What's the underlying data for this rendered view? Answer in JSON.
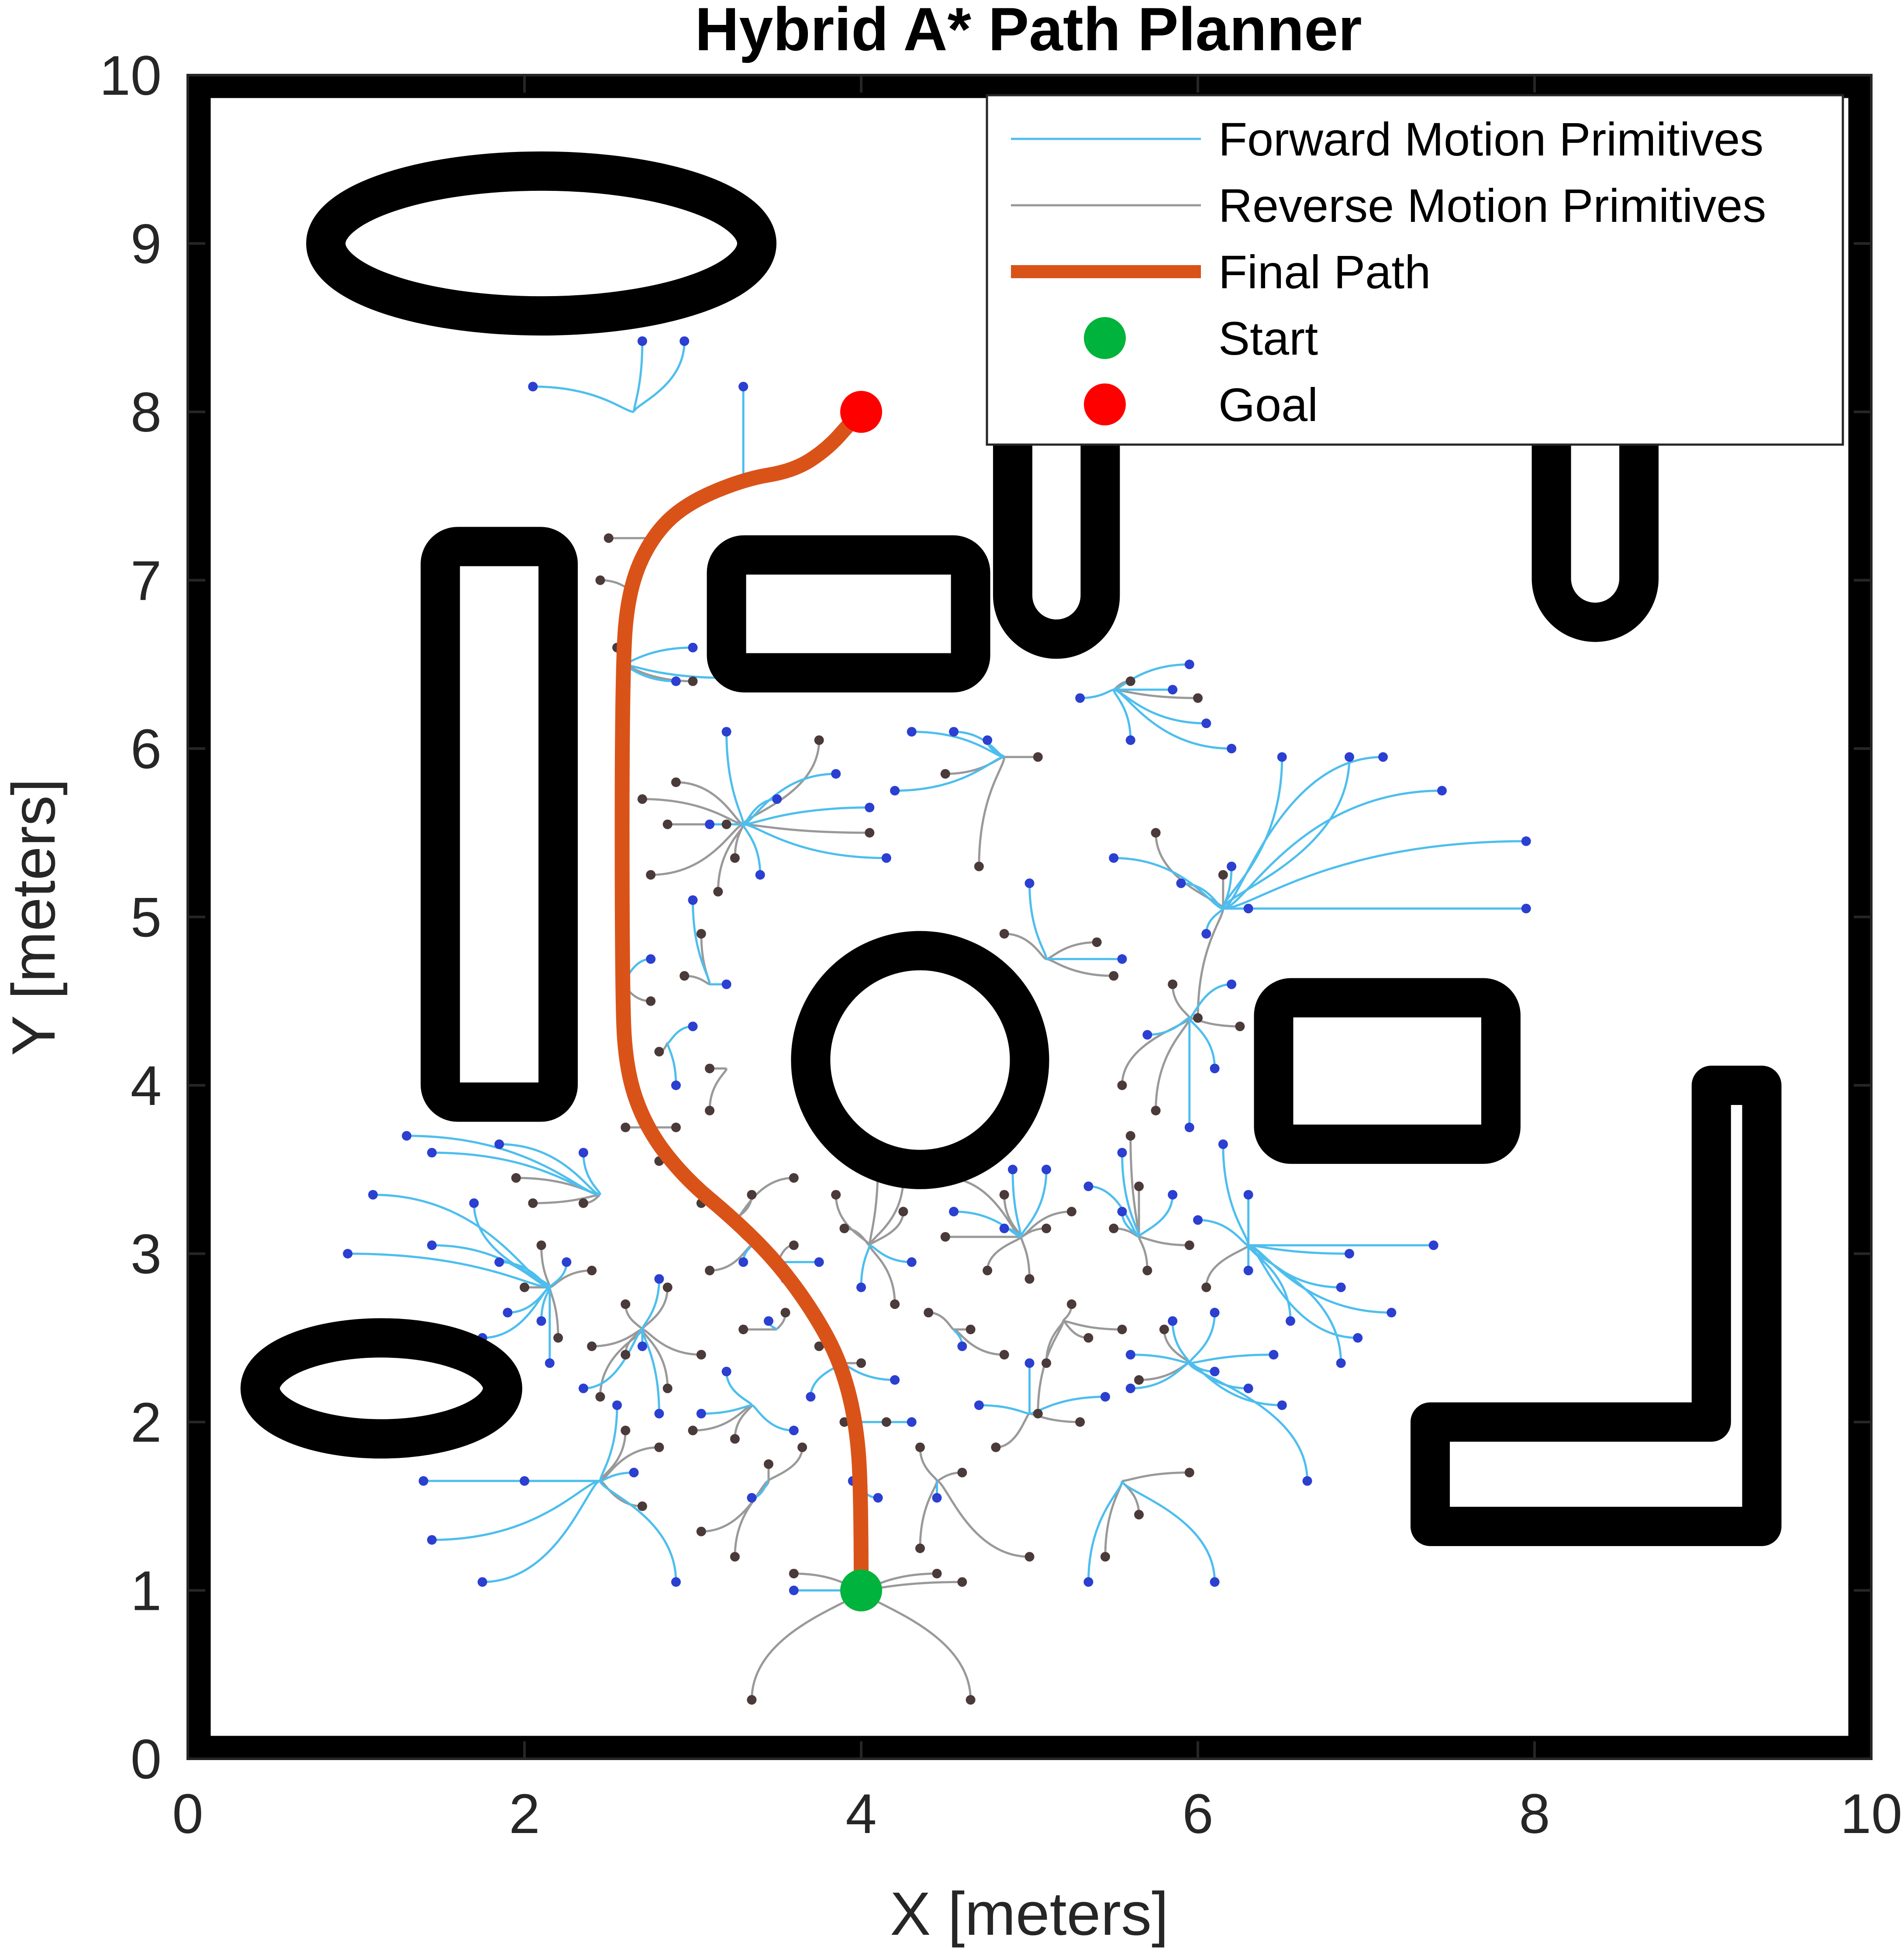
{
  "chart_data": {
    "type": "scatter",
    "title": "Hybrid A* Path Planner",
    "xlabel": "X [meters]",
    "ylabel": "Y [meters]",
    "xlim": [
      0,
      10
    ],
    "ylim": [
      0,
      10
    ],
    "xticks": [
      "0",
      "2",
      "4",
      "6",
      "8",
      "10"
    ],
    "yticks": [
      "0",
      "1",
      "2",
      "3",
      "4",
      "5",
      "6",
      "7",
      "8",
      "9",
      "10"
    ],
    "grid": false,
    "legend_position": "top-right",
    "legend": [
      {
        "label": "Forward Motion Primitives",
        "kind": "line",
        "color": "#4DBEEE"
      },
      {
        "label": "Reverse Motion Primitives",
        "kind": "line",
        "color": "#999999"
      },
      {
        "label": "Final Path",
        "kind": "thick-line",
        "color": "#D95319"
      },
      {
        "label": "Start",
        "kind": "marker",
        "color": "#00B33C"
      },
      {
        "label": "Goal",
        "kind": "marker",
        "color": "#FF0000"
      }
    ],
    "start": {
      "x": 4.0,
      "y": 1.0
    },
    "goal": {
      "x": 4.0,
      "y": 8.0
    },
    "final_path": [
      [
        4.0,
        1.0
      ],
      [
        4.0,
        1.6
      ],
      [
        3.97,
        2.0
      ],
      [
        3.88,
        2.35
      ],
      [
        3.72,
        2.65
      ],
      [
        3.5,
        2.95
      ],
      [
        3.25,
        3.2
      ],
      [
        2.95,
        3.45
      ],
      [
        2.72,
        3.75
      ],
      [
        2.6,
        4.1
      ],
      [
        2.58,
        4.6
      ],
      [
        2.58,
        6.5
      ],
      [
        2.62,
        6.95
      ],
      [
        2.75,
        7.25
      ],
      [
        2.95,
        7.45
      ],
      [
        3.3,
        7.6
      ],
      [
        3.6,
        7.65
      ],
      [
        3.8,
        7.78
      ],
      [
        3.95,
        7.95
      ],
      [
        4.0,
        8.0
      ]
    ],
    "obstacles": [
      {
        "shape": "ellipse",
        "cx": 2.1,
        "cy": 9.0,
        "rx": 1.28,
        "ry": 0.43
      },
      {
        "shape": "rect",
        "x0": 1.5,
        "x1": 2.2,
        "y0": 3.9,
        "y1": 7.2
      },
      {
        "shape": "rect",
        "x0": 3.2,
        "x1": 4.65,
        "y0": 6.45,
        "y1": 7.15
      },
      {
        "shape": "u-slot",
        "x0": 4.9,
        "x1": 5.42,
        "ybottom": 6.65,
        "ytop": 8.0
      },
      {
        "shape": "u-slot",
        "x0": 8.1,
        "x1": 8.62,
        "ybottom": 6.75,
        "ytop": 8.0
      },
      {
        "shape": "circle",
        "cx": 4.35,
        "cy": 4.15,
        "r": 0.65
      },
      {
        "shape": "rect",
        "x0": 6.45,
        "x1": 7.8,
        "y0": 3.65,
        "y1": 4.52
      },
      {
        "shape": "ellipse",
        "cx": 1.15,
        "cy": 2.2,
        "rx": 0.72,
        "ry": 0.3
      },
      {
        "shape": "l-shape",
        "pts": [
          [
            9.05,
            4.0
          ],
          [
            9.35,
            4.0
          ],
          [
            9.35,
            1.38
          ],
          [
            7.38,
            1.38
          ],
          [
            7.38,
            2.0
          ],
          [
            9.05,
            2.0
          ]
        ]
      }
    ],
    "forward_endpoints": [
      [
        2.7,
        8.42
      ],
      [
        2.05,
        8.15
      ],
      [
        2.95,
        8.42
      ],
      [
        3.3,
        8.15
      ],
      [
        3.2,
        6.42
      ],
      [
        3.0,
        6.6
      ],
      [
        3.2,
        6.1
      ],
      [
        2.9,
        6.4
      ],
      [
        4.3,
        6.1
      ],
      [
        4.55,
        6.1
      ],
      [
        4.75,
        6.05
      ],
      [
        3.85,
        5.85
      ],
      [
        4.2,
        5.75
      ],
      [
        5.3,
        6.3
      ],
      [
        5.95,
        6.5
      ],
      [
        5.85,
        6.35
      ],
      [
        5.6,
        6.05
      ],
      [
        6.05,
        6.15
      ],
      [
        6.2,
        6.0
      ],
      [
        6.5,
        5.95
      ],
      [
        6.9,
        5.95
      ],
      [
        7.1,
        5.95
      ],
      [
        7.45,
        5.75
      ],
      [
        7.95,
        5.45
      ],
      [
        7.95,
        5.05
      ],
      [
        6.2,
        5.3
      ],
      [
        5.9,
        5.2
      ],
      [
        6.3,
        5.05
      ],
      [
        5.0,
        5.2
      ],
      [
        5.5,
        5.35
      ],
      [
        3.5,
        5.7
      ],
      [
        3.1,
        5.55
      ],
      [
        3.4,
        5.25
      ],
      [
        3.2,
        4.6
      ],
      [
        3.0,
        4.35
      ],
      [
        2.9,
        4.0
      ],
      [
        3.0,
        5.1
      ],
      [
        2.75,
        4.75
      ],
      [
        4.15,
        5.35
      ],
      [
        4.05,
        5.65
      ],
      [
        5.55,
        4.75
      ],
      [
        6.05,
        4.9
      ],
      [
        6.2,
        4.6
      ],
      [
        6.1,
        4.1
      ],
      [
        5.7,
        4.3
      ],
      [
        5.55,
        3.6
      ],
      [
        5.95,
        3.75
      ],
      [
        6.15,
        3.65
      ],
      [
        1.3,
        3.7
      ],
      [
        1.45,
        3.6
      ],
      [
        1.85,
        3.65
      ],
      [
        2.35,
        3.6
      ],
      [
        1.1,
        3.35
      ],
      [
        1.7,
        3.3
      ],
      [
        0.95,
        3.0
      ],
      [
        1.45,
        3.05
      ],
      [
        1.85,
        2.95
      ],
      [
        2.25,
        2.95
      ],
      [
        1.9,
        2.65
      ],
      [
        2.1,
        2.6
      ],
      [
        1.75,
        2.5
      ],
      [
        2.15,
        2.35
      ],
      [
        2.35,
        2.2
      ],
      [
        2.7,
        2.45
      ],
      [
        2.55,
        2.1
      ],
      [
        2.8,
        2.05
      ],
      [
        3.05,
        2.05
      ],
      [
        3.2,
        2.3
      ],
      [
        3.45,
        2.6
      ],
      [
        3.3,
        2.95
      ],
      [
        3.55,
        2.85
      ],
      [
        3.75,
        2.95
      ],
      [
        2.8,
        2.85
      ],
      [
        4.0,
        2.8
      ],
      [
        4.3,
        2.95
      ],
      [
        4.55,
        3.25
      ],
      [
        4.85,
        3.15
      ],
      [
        4.9,
        3.5
      ],
      [
        5.1,
        3.5
      ],
      [
        5.35,
        3.4
      ],
      [
        5.55,
        3.25
      ],
      [
        5.85,
        3.35
      ],
      [
        6.0,
        3.2
      ],
      [
        6.3,
        3.35
      ],
      [
        6.9,
        3.0
      ],
      [
        7.4,
        3.05
      ],
      [
        6.3,
        2.9
      ],
      [
        6.1,
        2.65
      ],
      [
        5.85,
        2.6
      ],
      [
        5.6,
        2.4
      ],
      [
        5.45,
        2.15
      ],
      [
        6.1,
        2.3
      ],
      [
        6.45,
        2.4
      ],
      [
        6.55,
        2.6
      ],
      [
        6.95,
        2.5
      ],
      [
        6.85,
        2.35
      ],
      [
        6.3,
        2.2
      ],
      [
        5.6,
        2.2
      ],
      [
        5.0,
        2.35
      ],
      [
        4.6,
        2.45
      ],
      [
        4.7,
        2.1
      ],
      [
        4.3,
        2.0
      ],
      [
        4.2,
        2.25
      ],
      [
        3.7,
        2.15
      ],
      [
        3.6,
        1.95
      ],
      [
        3.95,
        1.65
      ],
      [
        4.1,
        1.55
      ],
      [
        4.45,
        1.55
      ],
      [
        3.35,
        1.55
      ],
      [
        2.65,
        1.7
      ],
      [
        2.0,
        1.65
      ],
      [
        1.4,
        1.65
      ],
      [
        1.45,
        1.3
      ],
      [
        1.75,
        1.05
      ],
      [
        2.9,
        1.05
      ],
      [
        3.6,
        1.0
      ],
      [
        5.35,
        1.05
      ],
      [
        6.1,
        1.05
      ],
      [
        6.65,
        1.65
      ],
      [
        6.5,
        2.1
      ],
      [
        6.85,
        2.8
      ],
      [
        7.15,
        2.65
      ]
    ],
    "reverse_endpoints": [
      [
        2.45,
        7.0
      ],
      [
        2.5,
        7.25
      ],
      [
        3.0,
        6.4
      ],
      [
        3.75,
        6.05
      ],
      [
        4.5,
        5.85
      ],
      [
        5.05,
        5.95
      ],
      [
        5.6,
        6.4
      ],
      [
        6.0,
        6.3
      ],
      [
        4.7,
        5.3
      ],
      [
        5.5,
        4.65
      ],
      [
        5.85,
        4.6
      ],
      [
        6.25,
        4.35
      ],
      [
        3.2,
        5.55
      ],
      [
        3.25,
        5.35
      ],
      [
        3.15,
        5.15
      ],
      [
        3.05,
        4.9
      ],
      [
        2.95,
        4.65
      ],
      [
        2.75,
        5.25
      ],
      [
        2.85,
        5.55
      ],
      [
        2.9,
        5.8
      ],
      [
        2.7,
        5.7
      ],
      [
        2.8,
        4.2
      ],
      [
        2.75,
        4.5
      ],
      [
        3.1,
        4.1
      ],
      [
        3.1,
        3.85
      ],
      [
        2.9,
        3.75
      ],
      [
        2.6,
        3.75
      ],
      [
        2.8,
        3.55
      ],
      [
        3.05,
        3.3
      ],
      [
        3.35,
        3.35
      ],
      [
        3.6,
        3.45
      ],
      [
        3.85,
        3.35
      ],
      [
        4.1,
        3.55
      ],
      [
        4.25,
        3.25
      ],
      [
        4.5,
        3.1
      ],
      [
        4.75,
        2.9
      ],
      [
        5.0,
        2.85
      ],
      [
        5.25,
        2.7
      ],
      [
        5.55,
        2.55
      ],
      [
        5.8,
        2.55
      ],
      [
        6.05,
        2.8
      ],
      [
        5.7,
        2.9
      ],
      [
        5.95,
        3.05
      ],
      [
        5.5,
        3.15
      ],
      [
        5.25,
        3.25
      ],
      [
        5.1,
        3.15
      ],
      [
        4.85,
        3.35
      ],
      [
        5.65,
        3.4
      ],
      [
        5.6,
        3.7
      ],
      [
        5.75,
        3.85
      ],
      [
        5.55,
        4.0
      ],
      [
        6.0,
        4.4
      ],
      [
        4.5,
        3.45
      ],
      [
        4.25,
        3.45
      ],
      [
        3.9,
        3.15
      ],
      [
        3.6,
        3.05
      ],
      [
        3.25,
        3.2
      ],
      [
        3.1,
        2.9
      ],
      [
        2.85,
        2.8
      ],
      [
        2.6,
        2.7
      ],
      [
        2.4,
        2.9
      ],
      [
        2.1,
        3.05
      ],
      [
        2.05,
        3.3
      ],
      [
        2.35,
        3.3
      ],
      [
        1.95,
        3.45
      ],
      [
        2.0,
        2.8
      ],
      [
        2.2,
        2.5
      ],
      [
        2.4,
        2.45
      ],
      [
        2.6,
        2.4
      ],
      [
        2.85,
        2.2
      ],
      [
        3.05,
        2.4
      ],
      [
        3.3,
        2.55
      ],
      [
        3.55,
        2.65
      ],
      [
        3.75,
        2.45
      ],
      [
        4.0,
        2.35
      ],
      [
        4.2,
        2.7
      ],
      [
        4.4,
        2.65
      ],
      [
        4.65,
        2.55
      ],
      [
        4.85,
        2.4
      ],
      [
        5.1,
        2.35
      ],
      [
        5.35,
        2.5
      ],
      [
        5.65,
        2.25
      ],
      [
        5.3,
        2.0
      ],
      [
        5.05,
        2.05
      ],
      [
        4.8,
        1.85
      ],
      [
        4.6,
        1.7
      ],
      [
        4.35,
        1.85
      ],
      [
        4.15,
        2.0
      ],
      [
        3.9,
        2.0
      ],
      [
        3.65,
        1.85
      ],
      [
        3.45,
        1.75
      ],
      [
        3.25,
        1.9
      ],
      [
        3.0,
        1.95
      ],
      [
        2.8,
        1.85
      ],
      [
        2.6,
        1.95
      ],
      [
        2.45,
        2.15
      ],
      [
        2.7,
        1.5
      ],
      [
        3.05,
        1.35
      ],
      [
        3.25,
        1.2
      ],
      [
        3.6,
        1.1
      ],
      [
        4.35,
        1.25
      ],
      [
        4.45,
        1.1
      ],
      [
        4.6,
        1.05
      ],
      [
        5.0,
        1.2
      ],
      [
        5.45,
        1.2
      ],
      [
        5.65,
        1.45
      ],
      [
        5.95,
        1.7
      ],
      [
        3.35,
        0.35
      ],
      [
        4.65,
        0.35
      ],
      [
        2.55,
        6.6
      ],
      [
        4.05,
        5.5
      ],
      [
        4.85,
        4.9
      ],
      [
        5.4,
        4.85
      ],
      [
        6.15,
        5.25
      ],
      [
        5.75,
        5.5
      ]
    ]
  }
}
